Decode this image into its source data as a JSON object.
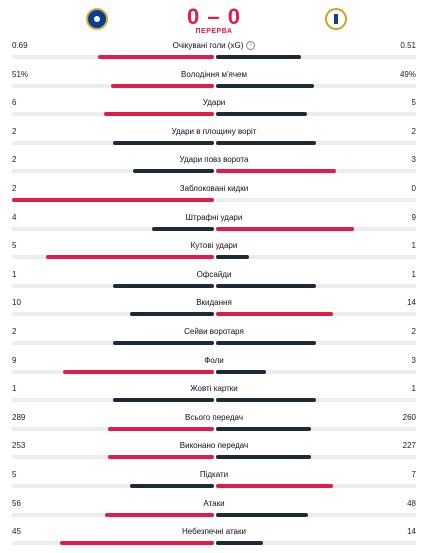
{
  "match": {
    "home_logo": "chelsea-crest",
    "away_logo": "real-madrid-crest",
    "score": "0 – 0",
    "status": "ПЕРЕРВА"
  },
  "colors": {
    "leader": "#e31b4b",
    "other": "#1f2a37",
    "track": "#ededed"
  },
  "stats": [
    {
      "name": "Очікувані голи (xG)",
      "home": "0.69",
      "away": "0.51",
      "hv": 0.69,
      "av": 0.51,
      "info": "i"
    },
    {
      "name": "Володіння м'ячем",
      "home": "51%",
      "away": "49%",
      "hv": 51,
      "av": 49
    },
    {
      "name": "Удари",
      "home": "6",
      "away": "5",
      "hv": 6,
      "av": 5
    },
    {
      "name": "Удари в площину воріт",
      "home": "2",
      "away": "2",
      "hv": 2,
      "av": 2
    },
    {
      "name": "Удари повз ворота",
      "home": "2",
      "away": "3",
      "hv": 2,
      "av": 3
    },
    {
      "name": "Заблоковані кидки",
      "home": "2",
      "away": "0",
      "hv": 2,
      "av": 0
    },
    {
      "name": "Штрафні удари",
      "home": "4",
      "away": "9",
      "hv": 4,
      "av": 9
    },
    {
      "name": "Кутові удари",
      "home": "5",
      "away": "1",
      "hv": 5,
      "av": 1
    },
    {
      "name": "Офсайди",
      "home": "1",
      "away": "1",
      "hv": 1,
      "av": 1
    },
    {
      "name": "Вкидання",
      "home": "10",
      "away": "14",
      "hv": 10,
      "av": 14
    },
    {
      "name": "Сейви воротаря",
      "home": "2",
      "away": "2",
      "hv": 2,
      "av": 2
    },
    {
      "name": "Фоли",
      "home": "9",
      "away": "3",
      "hv": 9,
      "av": 3
    },
    {
      "name": "Жовті картки",
      "home": "1",
      "away": "1",
      "hv": 1,
      "av": 1
    },
    {
      "name": "Всього передач",
      "home": "289",
      "away": "260",
      "hv": 289,
      "av": 260
    },
    {
      "name": "Виконано передач",
      "home": "253",
      "away": "227",
      "hv": 253,
      "av": 227
    },
    {
      "name": "Підкати",
      "home": "5",
      "away": "7",
      "hv": 5,
      "av": 7
    },
    {
      "name": "Атаки",
      "home": "56",
      "away": "48",
      "hv": 56,
      "av": 48
    },
    {
      "name": "Небезпечні атаки",
      "home": "45",
      "away": "14",
      "hv": 45,
      "av": 14
    }
  ]
}
